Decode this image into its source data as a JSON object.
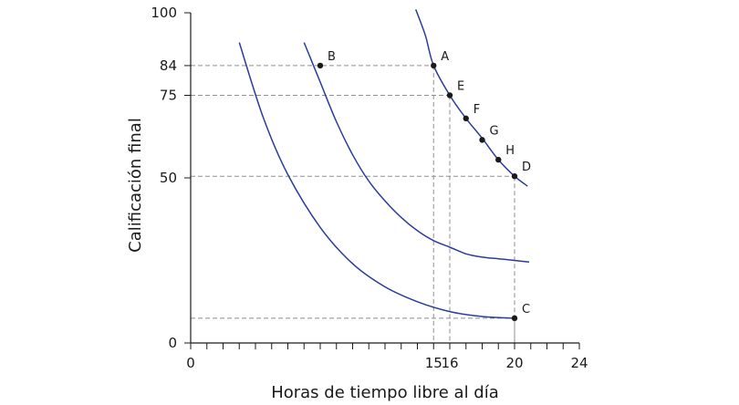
{
  "chart_data": {
    "type": "line",
    "xlabel": "Horas de tiempo libre al día",
    "ylabel": "Calificación final",
    "xlim": [
      0,
      24
    ],
    "ylim": [
      0,
      100
    ],
    "x_tick_labels": [
      {
        "value": 0,
        "label": "0"
      },
      {
        "value": 15,
        "label": "15"
      },
      {
        "value": 16,
        "label": "16"
      },
      {
        "value": 20,
        "label": "20"
      },
      {
        "value": 24,
        "label": "24"
      }
    ],
    "y_tick_labels": [
      {
        "value": 0,
        "label": "0"
      },
      {
        "value": 50,
        "label": "50"
      },
      {
        "value": 75,
        "label": "75"
      },
      {
        "value": 84,
        "label": "84"
      },
      {
        "value": 100,
        "label": "100"
      }
    ],
    "x_minor_tick_step": 1,
    "grid": false,
    "curve_color": "#2a3c9e",
    "guide_color": "#8f8f8f",
    "series": [
      {
        "points": [
          [
            3,
            91
          ],
          [
            4.5,
            68
          ],
          [
            6,
            51
          ],
          [
            8,
            35
          ],
          [
            10,
            24
          ],
          [
            12,
            17
          ],
          [
            14,
            12.5
          ],
          [
            16,
            9.5
          ],
          [
            18,
            8
          ],
          [
            20,
            7.5
          ]
        ]
      },
      {
        "points": [
          [
            7,
            91
          ],
          [
            8,
            79
          ],
          [
            9,
            67
          ],
          [
            10,
            57
          ],
          [
            11,
            49
          ],
          [
            12,
            43
          ],
          [
            13,
            38
          ],
          [
            14,
            34
          ],
          [
            15,
            31
          ],
          [
            16,
            29
          ],
          [
            17,
            27
          ],
          [
            18,
            26
          ],
          [
            19,
            25.5
          ],
          [
            20,
            25
          ],
          [
            20.9,
            24.5
          ]
        ]
      },
      {
        "points": [
          [
            13.9,
            101
          ],
          [
            14.5,
            93
          ],
          [
            15,
            84
          ],
          [
            16,
            75
          ],
          [
            17,
            68
          ],
          [
            18,
            62
          ],
          [
            19,
            55.5
          ],
          [
            20,
            50.5
          ],
          [
            20.8,
            47.5
          ]
        ]
      }
    ],
    "points": [
      {
        "label": "A",
        "x": 15,
        "y": 84
      },
      {
        "label": "B",
        "x": 8,
        "y": 84
      },
      {
        "label": "C",
        "x": 20,
        "y": 7.5
      },
      {
        "label": "D",
        "x": 20,
        "y": 50.5
      },
      {
        "label": "E",
        "x": 16,
        "y": 75
      },
      {
        "label": "F",
        "x": 17,
        "y": 68
      },
      {
        "label": "G",
        "x": 18,
        "y": 61.5
      },
      {
        "label": "H",
        "x": 19,
        "y": 55.5
      }
    ],
    "guides": [
      {
        "x": 15,
        "y": 84
      },
      {
        "x": 16,
        "y": 75
      },
      {
        "x": 20,
        "y": 50.5
      },
      {
        "x": 20,
        "y": 7.5
      }
    ]
  }
}
